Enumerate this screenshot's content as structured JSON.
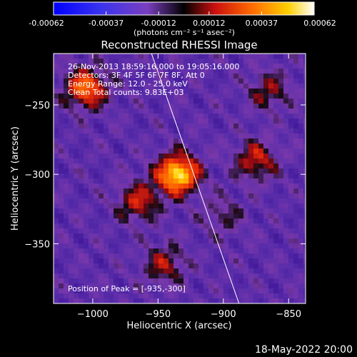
{
  "colorbar": {
    "ticks": [
      "-0.00062",
      "-0.00037",
      "-0.00012",
      "0.00012",
      "0.00037",
      "0.00062"
    ],
    "unit_label": "(photons cm⁻² s⁻¹ asec⁻²)",
    "range": [
      -0.00062,
      0.00062
    ]
  },
  "plot": {
    "title": "Reconstructed RHESSI Image",
    "info_lines": [
      "26-Nov-2013 18:59:16.000 to 19:05:16.000",
      "Detectors: 3F 4F 5F 6F 7F 8F, Att 0",
      "Energy Range: 12.0 - 25.0 keV",
      "Clean    Total counts: 9.83E+03"
    ],
    "peak_label": "Position of Peak = [-935,-300]",
    "peak": [
      -935,
      -300
    ],
    "footer_date": "18-May-2022 20:00"
  },
  "chart_data": {
    "type": "heatmap",
    "title": "Reconstructed RHESSI Image",
    "xlabel": "Heliocentric X (arcsec)",
    "ylabel": "Heliocentric Y (arcsec)",
    "xlim": [
      -1030,
      -837
    ],
    "ylim": [
      -393,
      -213
    ],
    "xticks": [
      -1000,
      -950,
      -900,
      -850
    ],
    "yticks": [
      -250,
      -300,
      -350
    ],
    "limb": [
      [
        -955,
        -213
      ],
      [
        -888,
        -393
      ]
    ],
    "sources": [
      {
        "x": -935,
        "y": -300,
        "intensity": 0.00062
      },
      {
        "x": -1005,
        "y": -238,
        "intensity": 0.00045
      },
      {
        "x": -965,
        "y": -320,
        "intensity": 0.0003
      },
      {
        "x": -875,
        "y": -290,
        "intensity": 0.0003
      },
      {
        "x": -945,
        "y": -365,
        "intensity": 0.00025
      },
      {
        "x": -865,
        "y": -240,
        "intensity": 0.00022
      },
      {
        "x": -900,
        "y": -330,
        "intensity": 0.00015
      }
    ]
  }
}
